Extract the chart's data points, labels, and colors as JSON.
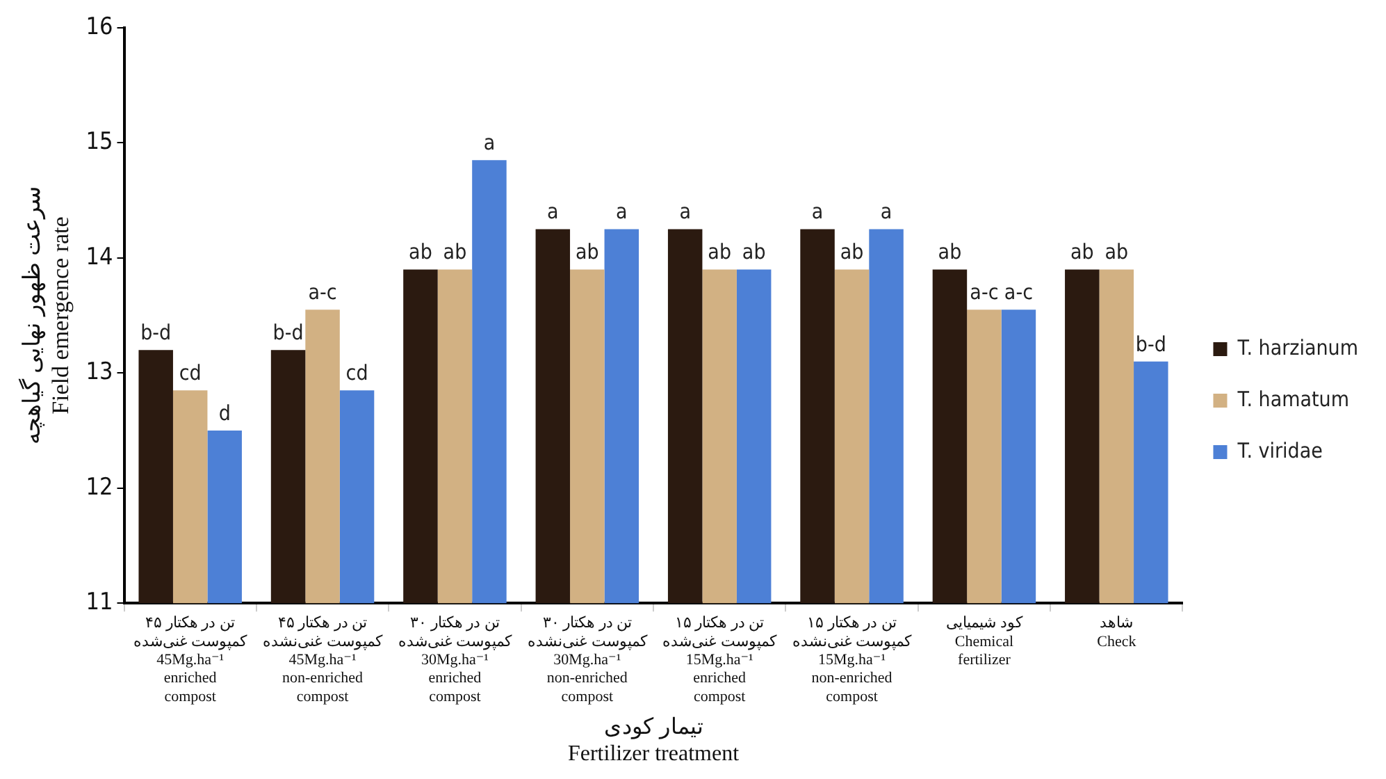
{
  "chart_data": {
    "type": "bar",
    "ylabel": "سرعت ظهور نهایی گیاهچه\nField emergence rate",
    "xlabel": "تیمار کودی\nFertilizer treatment",
    "categories": [
      "۴۵ تن در هکتار\nکمپوست غنی‌شده\n45Mg.ha⁻¹\nenriched\ncompost",
      "۴۵ تن در هکتار\nکمپوست غنی‌نشده\n45Mg.ha⁻¹\nnon-enriched\ncompost",
      "۳۰ تن در هکتار\nکمپوست غنی‌شده\n30Mg.ha⁻¹\nenriched\ncompost",
      "۳۰ تن در هکتار\nکمپوست غنی‌نشده\n30Mg.ha⁻¹\nnon-enriched\ncompost",
      "۱۵ تن در هکتار\nکمپوست غنی‌شده\n15Mg.ha⁻¹\nenriched\ncompost",
      "۱۵ تن در هکتار\nکمپوست غنی‌نشده\n15Mg.ha⁻¹\nnon-enriched\ncompost",
      "کود شیمیایی\nChemical\nfertilizer",
      "شاهد\nCheck"
    ],
    "series": [
      {
        "name": "T. harzianum",
        "color": "#2b1a10",
        "values": [
          13.2,
          13.2,
          13.9,
          14.25,
          14.25,
          14.25,
          13.9,
          13.9
        ],
        "value_labels": [
          "b-d",
          "b-d",
          "ab",
          "a",
          "a",
          "a",
          "ab",
          "ab"
        ]
      },
      {
        "name": "T. hamatum",
        "color": "#d2b183",
        "values": [
          12.85,
          13.55,
          13.9,
          13.9,
          13.9,
          13.9,
          13.55,
          13.9
        ],
        "value_labels": [
          "cd",
          "a-c",
          "ab",
          "ab",
          "ab",
          "ab",
          "a-c",
          "ab"
        ]
      },
      {
        "name": "T. viridae",
        "color": "#4d80d6",
        "values": [
          12.5,
          12.85,
          14.85,
          14.25,
          13.9,
          14.25,
          13.55,
          13.1
        ],
        "value_labels": [
          "d",
          "cd",
          "a",
          "a",
          "ab",
          "a",
          "a-c",
          "b-d"
        ]
      }
    ],
    "ylim": [
      11,
      16
    ],
    "yticks": [
      11,
      12,
      13,
      14,
      15,
      16
    ],
    "grid": false,
    "legend": "right"
  }
}
